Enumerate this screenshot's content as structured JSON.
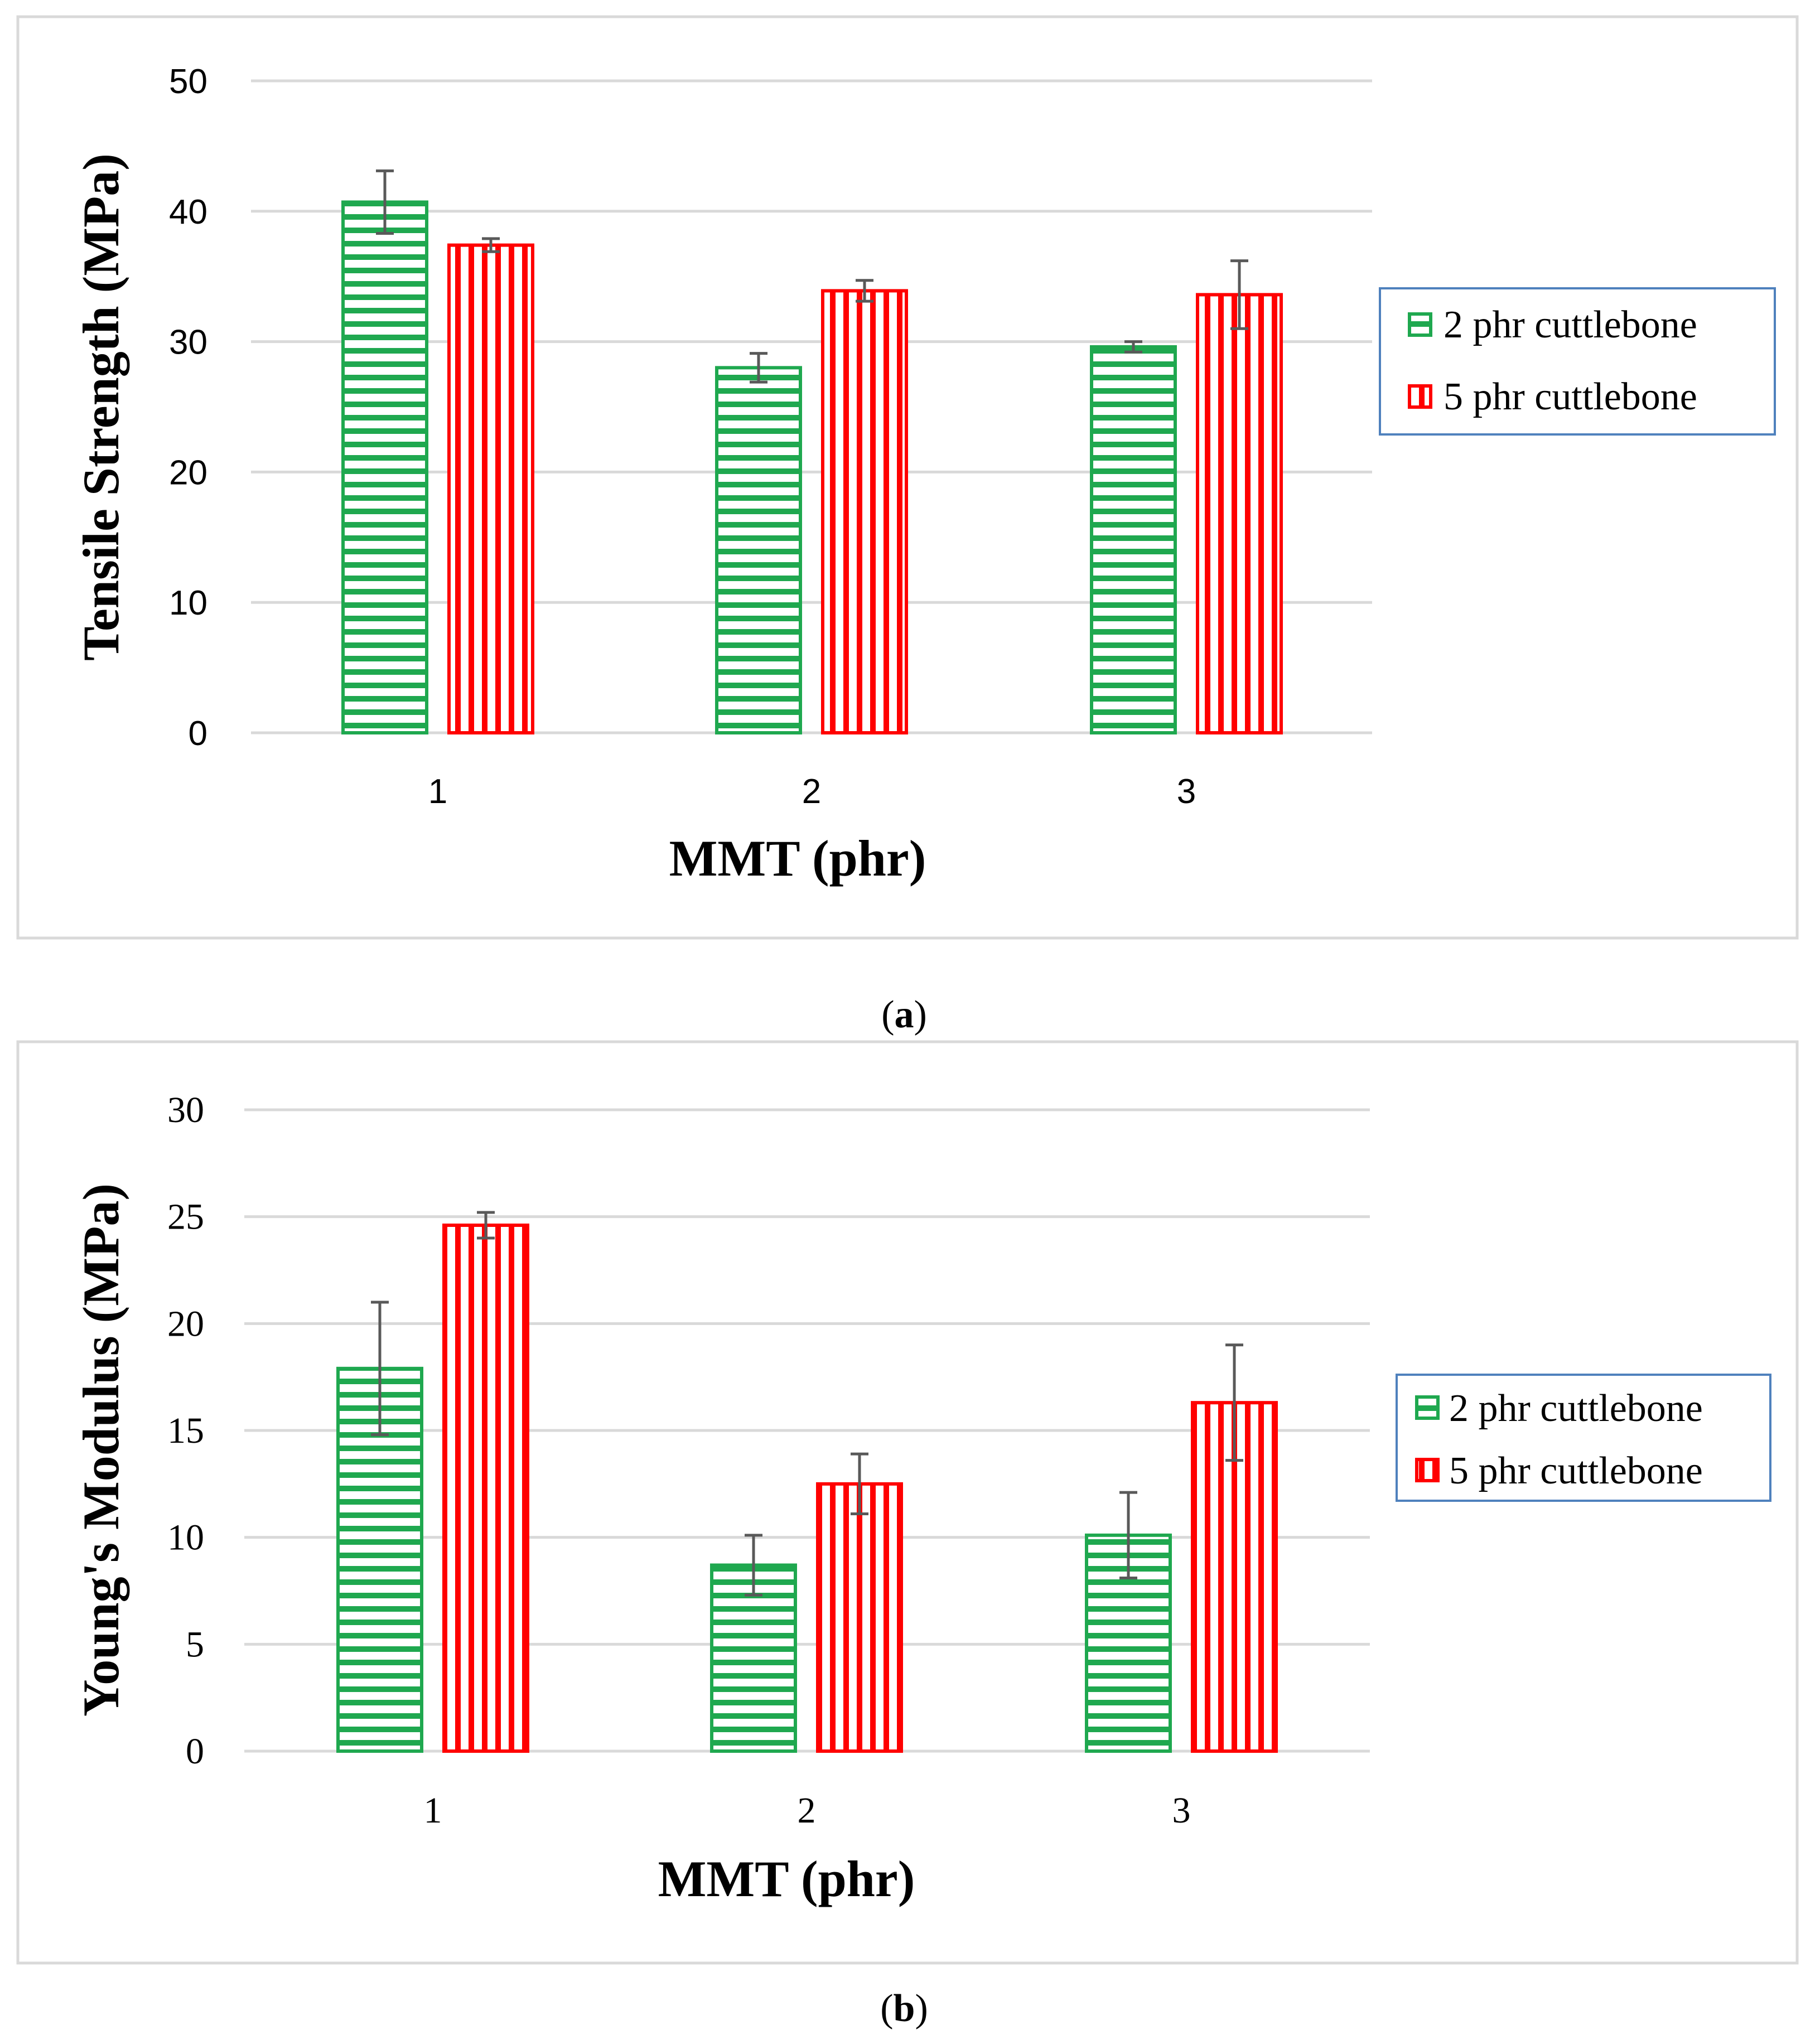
{
  "captions": [
    {
      "open": "(",
      "letter": "a",
      "close": ")"
    },
    {
      "open": "(",
      "letter": "b",
      "close": ")"
    }
  ],
  "colors": {
    "series_2phr": "#1fa84f",
    "series_5phr": "#ff0000",
    "gridline": "#d9d9d9",
    "panel_border": "#d9d9d9",
    "legend_border": "#4f81bd",
    "error_bar": "#595959"
  },
  "chart_data": [
    {
      "type": "bar",
      "title": "",
      "xlabel": "MMT (phr)",
      "ylabel": "Tensile Strength (MPa)",
      "categories": [
        "1",
        "2",
        "3"
      ],
      "ylim": [
        0,
        50
      ],
      "yticks": [
        0,
        10,
        20,
        30,
        40,
        50
      ],
      "grid": true,
      "legend_position": "right",
      "series": [
        {
          "name": "2 phr cuttlebone",
          "pattern": "horizontal-stripes",
          "values": [
            40.7,
            28.0,
            29.6
          ],
          "errors": [
            2.4,
            1.1,
            0.4
          ]
        },
        {
          "name": "5 phr cuttlebone",
          "pattern": "vertical-stripes",
          "values": [
            37.4,
            33.9,
            33.6
          ],
          "errors": [
            0.5,
            0.8,
            2.6
          ]
        }
      ]
    },
    {
      "type": "bar",
      "title": "",
      "xlabel": "MMT (phr)",
      "ylabel": "Young's Modulus (MPa)",
      "categories": [
        "1",
        "2",
        "3"
      ],
      "ylim": [
        0,
        30
      ],
      "yticks": [
        0,
        5,
        10,
        15,
        20,
        25,
        30
      ],
      "grid": true,
      "legend_position": "right",
      "series": [
        {
          "name": "2 phr cuttlebone",
          "pattern": "horizontal-stripes",
          "values": [
            17.9,
            8.7,
            10.1
          ],
          "errors": [
            3.1,
            1.4,
            2.0
          ]
        },
        {
          "name": "5 phr cuttlebone",
          "pattern": "vertical-stripes",
          "values": [
            24.6,
            12.5,
            16.3
          ],
          "errors": [
            0.6,
            1.4,
            2.7
          ]
        }
      ]
    }
  ]
}
